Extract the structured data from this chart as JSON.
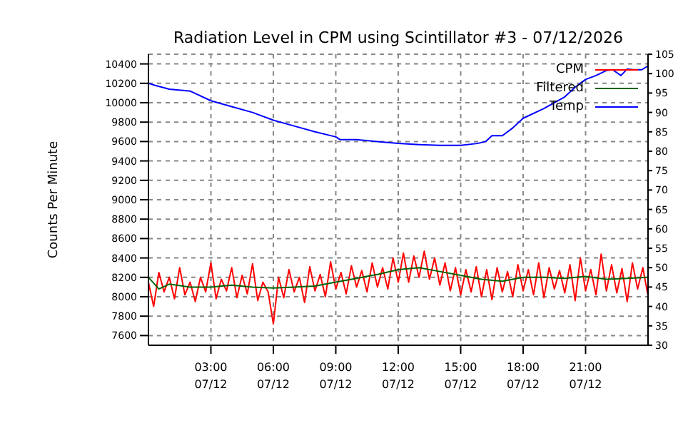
{
  "chart_data": {
    "type": "line",
    "title": "Radiation Level in CPM using Scintillator #3 - 07/12/2026",
    "ylabel": "Counts Per Minute",
    "xlim": [
      "2026-07-12T00:00",
      "2026-07-13T00:00"
    ],
    "xticks": [
      {
        "value": "2026-07-12T03:00",
        "label": "03:00\n07/12"
      },
      {
        "value": "2026-07-12T06:00",
        "label": "06:00\n07/12"
      },
      {
        "value": "2026-07-12T09:00",
        "label": "09:00\n07/12"
      },
      {
        "value": "2026-07-12T12:00",
        "label": "12:00\n07/12"
      },
      {
        "value": "2026-07-12T15:00",
        "label": "15:00\n07/12"
      },
      {
        "value": "2026-07-12T18:00",
        "label": "18:00\n07/12"
      },
      {
        "value": "2026-07-12T21:00",
        "label": "21:00\n07/12"
      }
    ],
    "ylim": [
      7500,
      10500
    ],
    "yticks": [
      7600,
      7800,
      8000,
      8200,
      8400,
      8600,
      8800,
      9000,
      9200,
      9400,
      9600,
      9800,
      10000,
      10200,
      10400
    ],
    "y2lim": [
      30,
      105
    ],
    "y2ticks": [
      30,
      35,
      40,
      45,
      50,
      55,
      60,
      65,
      70,
      75,
      80,
      85,
      90,
      95,
      100,
      105
    ],
    "grid": true,
    "legend": "top right",
    "marker": "none",
    "line_style": "solid",
    "series": [
      {
        "name": "CPM",
        "color": "#ff0000",
        "x": [
          "2026-07-12T00:00",
          "2026-07-12T00:15",
          "2026-07-12T00:30",
          "2026-07-12T00:45",
          "2026-07-12T01:00",
          "2026-07-12T01:15",
          "2026-07-12T01:30",
          "2026-07-12T01:45",
          "2026-07-12T02:00",
          "2026-07-12T02:15",
          "2026-07-12T02:30",
          "2026-07-12T02:45",
          "2026-07-12T03:00",
          "2026-07-12T03:15",
          "2026-07-12T03:30",
          "2026-07-12T03:45",
          "2026-07-12T04:00",
          "2026-07-12T04:15",
          "2026-07-12T04:30",
          "2026-07-12T04:45",
          "2026-07-12T05:00",
          "2026-07-12T05:15",
          "2026-07-12T05:30",
          "2026-07-12T05:45",
          "2026-07-12T06:00",
          "2026-07-12T06:15",
          "2026-07-12T06:30",
          "2026-07-12T06:45",
          "2026-07-12T07:00",
          "2026-07-12T07:15",
          "2026-07-12T07:30",
          "2026-07-12T07:45",
          "2026-07-12T08:00",
          "2026-07-12T08:15",
          "2026-07-12T08:30",
          "2026-07-12T08:45",
          "2026-07-12T09:00",
          "2026-07-12T09:15",
          "2026-07-12T09:30",
          "2026-07-12T09:45",
          "2026-07-12T10:00",
          "2026-07-12T10:15",
          "2026-07-12T10:30",
          "2026-07-12T10:45",
          "2026-07-12T11:00",
          "2026-07-12T11:15",
          "2026-07-12T11:30",
          "2026-07-12T11:45",
          "2026-07-12T12:00",
          "2026-07-12T12:15",
          "2026-07-12T12:30",
          "2026-07-12T12:45",
          "2026-07-12T13:00",
          "2026-07-12T13:15",
          "2026-07-12T13:30",
          "2026-07-12T13:45",
          "2026-07-12T14:00",
          "2026-07-12T14:15",
          "2026-07-12T14:30",
          "2026-07-12T14:45",
          "2026-07-12T15:00",
          "2026-07-12T15:15",
          "2026-07-12T15:30",
          "2026-07-12T15:45",
          "2026-07-12T16:00",
          "2026-07-12T16:15",
          "2026-07-12T16:30",
          "2026-07-12T16:45",
          "2026-07-12T17:00",
          "2026-07-12T17:15",
          "2026-07-12T17:30",
          "2026-07-12T17:45",
          "2026-07-12T18:00",
          "2026-07-12T18:15",
          "2026-07-12T18:30",
          "2026-07-12T18:45",
          "2026-07-12T19:00",
          "2026-07-12T19:15",
          "2026-07-12T19:30",
          "2026-07-12T19:45",
          "2026-07-12T20:00",
          "2026-07-12T20:15",
          "2026-07-12T20:30",
          "2026-07-12T20:45",
          "2026-07-12T21:00",
          "2026-07-12T21:15",
          "2026-07-12T21:30",
          "2026-07-12T21:45",
          "2026-07-12T22:00",
          "2026-07-12T22:15",
          "2026-07-12T22:30",
          "2026-07-12T22:45",
          "2026-07-12T23:00",
          "2026-07-12T23:15",
          "2026-07-12T23:30",
          "2026-07-12T23:45",
          "2026-07-13T00:00"
        ],
        "values": [
          8150,
          7900,
          8250,
          8050,
          8200,
          7980,
          8300,
          8020,
          8150,
          7950,
          8200,
          8050,
          8350,
          7980,
          8180,
          8060,
          8300,
          7990,
          8220,
          8030,
          8340,
          7960,
          8150,
          8050,
          7720,
          8200,
          7990,
          8280,
          8050,
          8200,
          7940,
          8310,
          8060,
          8230,
          8000,
          8360,
          8080,
          8250,
          8030,
          8320,
          8100,
          8270,
          8050,
          8350,
          8100,
          8300,
          8080,
          8400,
          8150,
          8450,
          8150,
          8420,
          8200,
          8470,
          8180,
          8400,
          8120,
          8350,
          8060,
          8300,
          8020,
          8280,
          8050,
          8310,
          8000,
          8280,
          7970,
          8300,
          8050,
          8260,
          8000,
          8330,
          8060,
          8280,
          8020,
          8350,
          7990,
          8300,
          8080,
          8270,
          8040,
          8330,
          7960,
          8400,
          8060,
          8280,
          8020,
          8440,
          8060,
          8330,
          8040,
          8290,
          7950,
          8350,
          8080,
          8300,
          8010
        ]
      },
      {
        "name": "Filtered",
        "color": "#006400",
        "x": [
          "2026-07-12T00:00",
          "2026-07-12T00:30",
          "2026-07-12T01:00",
          "2026-07-12T02:00",
          "2026-07-12T03:00",
          "2026-07-12T04:00",
          "2026-07-12T05:00",
          "2026-07-12T06:00",
          "2026-07-12T07:00",
          "2026-07-12T08:00",
          "2026-07-12T09:00",
          "2026-07-12T10:00",
          "2026-07-12T11:00",
          "2026-07-12T12:00",
          "2026-07-12T13:00",
          "2026-07-12T14:00",
          "2026-07-12T15:00",
          "2026-07-12T16:00",
          "2026-07-12T17:00",
          "2026-07-12T18:00",
          "2026-07-12T19:00",
          "2026-07-12T20:00",
          "2026-07-12T21:00",
          "2026-07-12T22:00",
          "2026-07-12T23:00",
          "2026-07-13T00:00"
        ],
        "values": [
          8200,
          8080,
          8130,
          8100,
          8100,
          8120,
          8100,
          8090,
          8100,
          8110,
          8150,
          8190,
          8230,
          8280,
          8300,
          8260,
          8220,
          8180,
          8160,
          8200,
          8200,
          8190,
          8210,
          8180,
          8190,
          8200
        ]
      },
      {
        "name": "Temp",
        "color": "#0000ff",
        "axis": "y2",
        "x": [
          "2026-07-12T00:00",
          "2026-07-12T00:18",
          "2026-07-12T01:00",
          "2026-07-12T02:00",
          "2026-07-12T03:00",
          "2026-07-12T04:00",
          "2026-07-12T05:00",
          "2026-07-12T06:00",
          "2026-07-12T07:00",
          "2026-07-12T08:00",
          "2026-07-12T09:00",
          "2026-07-12T09:12",
          "2026-07-12T10:00",
          "2026-07-12T11:00",
          "2026-07-12T12:00",
          "2026-07-12T13:00",
          "2026-07-12T14:00",
          "2026-07-12T15:00",
          "2026-07-12T15:48",
          "2026-07-12T16:12",
          "2026-07-12T16:30",
          "2026-07-12T17:00",
          "2026-07-12T17:30",
          "2026-07-12T18:00",
          "2026-07-12T19:00",
          "2026-07-12T20:00",
          "2026-07-12T20:30",
          "2026-07-12T21:00",
          "2026-07-12T21:30",
          "2026-07-12T22:00",
          "2026-07-12T22:18",
          "2026-07-12T22:42",
          "2026-07-12T23:00",
          "2026-07-12T23:18",
          "2026-07-12T23:42",
          "2026-07-13T00:00"
        ],
        "values": [
          97.5,
          97,
          96,
          95.5,
          93,
          91.5,
          90,
          88,
          86.5,
          85,
          83.7,
          83,
          83,
          82.5,
          82,
          81.7,
          81.5,
          81.5,
          82,
          82.5,
          84,
          84,
          86,
          88.5,
          91,
          94,
          96.5,
          98.5,
          99.5,
          100.8,
          101,
          99.5,
          101.2,
          101,
          101,
          102
        ]
      }
    ]
  }
}
